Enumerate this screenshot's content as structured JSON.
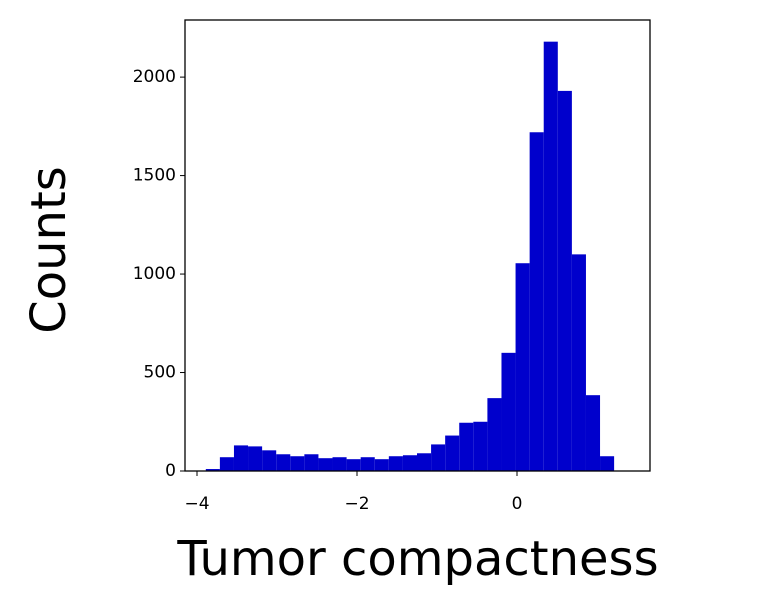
{
  "chart_data": {
    "type": "histogram",
    "xlabel": "Tumor compactness",
    "ylabel": "Counts",
    "bins": [
      -3.89,
      -3.714,
      -3.538,
      -3.362,
      -3.186,
      -3.01,
      -2.834,
      -2.658,
      -2.482,
      -2.306,
      -2.13,
      -1.954,
      -1.778,
      -1.602,
      -1.426,
      -1.25,
      -1.074,
      -0.898,
      -0.722,
      -0.546,
      -0.37,
      -0.194,
      -0.018,
      0.158,
      0.334,
      0.51,
      0.686,
      0.862,
      1.038,
      1.214
    ],
    "values": [
      10,
      70,
      130,
      125,
      105,
      85,
      75,
      85,
      65,
      70,
      60,
      70,
      60,
      75,
      80,
      90,
      135,
      180,
      245,
      250,
      370,
      600,
      1055,
      1720,
      2180,
      1930,
      1100,
      385,
      75
    ],
    "color": "#0000cc",
    "xlim": [
      -4.15,
      1.6625
    ],
    "ylim": [
      0,
      2290
    ],
    "xticks": [
      {
        "value": -4,
        "label": "−4"
      },
      {
        "value": -2,
        "label": "−2"
      },
      0
    ],
    "yticks": [
      0,
      500,
      1000,
      1500,
      2000
    ],
    "grid": false
  }
}
